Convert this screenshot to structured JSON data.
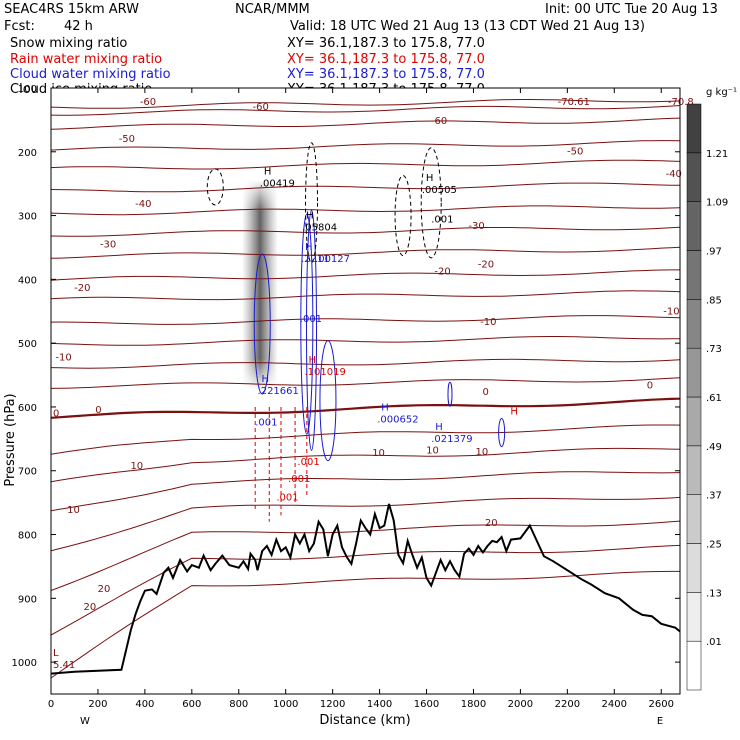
{
  "header": {
    "model": "SEAC4RS 15km ARW",
    "org": "NCAR/MMM",
    "init": "Init: 00 UTC Tue 20 Aug 13",
    "fcst_label": "Fcst:",
    "fcst_value": "42 h",
    "valid": "Valid: 18 UTC Wed 21 Aug 13 (13 CDT Wed 21 Aug 13)",
    "fields": [
      {
        "name": "Snow mixing ratio",
        "color": "#000000",
        "xy": "XY=  36.1,187.3 to 175.8, 77.0"
      },
      {
        "name": "Rain water mixing ratio",
        "color": "#e00000",
        "xy": "XY=  36.1,187.3 to 175.8, 77.0"
      },
      {
        "name": "Cloud water mixing ratio",
        "color": "#1a1ad0",
        "xy": "XY=  36.1,187.3 to 175.8, 77.0"
      },
      {
        "name": "Cloud ice mixing ratio",
        "color": "#000000",
        "xy": "XY=  36.1,187.3 to 175.8, 77.0"
      }
    ]
  },
  "chart_data": {
    "type": "cross-section",
    "xlabel": "Distance (km)",
    "ylabel": "Pressure (hPa)",
    "xlim": [
      0,
      2680
    ],
    "ylim": [
      1050,
      100
    ],
    "x_ticks": [
      0,
      200,
      400,
      600,
      800,
      1000,
      1200,
      1400,
      1600,
      1800,
      2000,
      2200,
      2400,
      2600
    ],
    "y_ticks": [
      100,
      200,
      300,
      400,
      500,
      600,
      700,
      800,
      900,
      1000
    ],
    "x_end_labels": [
      "W",
      "E"
    ],
    "colorbar": {
      "unit": "g kg⁻¹",
      "levels": [
        ".01",
        ".13",
        ".25",
        ".37",
        ".49",
        ".61",
        ".73",
        ".85",
        ".97",
        "1.09",
        "1.21"
      ]
    },
    "temperature_contours": [
      {
        "label": "-70.61",
        "x": 2150,
        "p": 120
      },
      {
        "label": "-70.8",
        "x": 2620,
        "p": 120
      },
      {
        "label": "-60",
        "x": 370,
        "p": 120
      },
      {
        "label": "-60",
        "x": 850,
        "p": 128
      },
      {
        "label": "-60",
        "x": 1610,
        "p": 150
      },
      {
        "label": "-50",
        "x": 280,
        "p": 178
      },
      {
        "label": "-50",
        "x": 2190,
        "p": 198
      },
      {
        "label": "-40",
        "x": 350,
        "p": 280
      },
      {
        "label": "-40",
        "x": 2610,
        "p": 233
      },
      {
        "label": "-30",
        "x": 200,
        "p": 344
      },
      {
        "label": "-30",
        "x": 1770,
        "p": 315
      },
      {
        "label": "-20",
        "x": 90,
        "p": 412
      },
      {
        "label": "-20",
        "x": 1625,
        "p": 386
      },
      {
        "label": "-20",
        "x": 1810,
        "p": 375
      },
      {
        "label": "-10",
        "x": 10,
        "p": 521
      },
      {
        "label": "-10",
        "x": 1820,
        "p": 465
      },
      {
        "label": "-10",
        "x": 2600,
        "p": 449
      },
      {
        "label": "0",
        "x": 0,
        "p": 609
      },
      {
        "label": "0",
        "x": 180,
        "p": 603
      },
      {
        "label": "0",
        "x": 1830,
        "p": 575
      },
      {
        "label": "0",
        "x": 2530,
        "p": 565
      },
      {
        "label": "10",
        "x": 1360,
        "p": 671
      },
      {
        "label": "10",
        "x": 1590,
        "p": 667
      },
      {
        "label": "10",
        "x": 1800,
        "p": 669
      },
      {
        "label": "10",
        "x": 330,
        "p": 691
      },
      {
        "label": "10",
        "x": 60,
        "p": 760
      },
      {
        "label": "20",
        "x": 1840,
        "p": 780
      },
      {
        "label": "20",
        "x": 190,
        "p": 884
      },
      {
        "label": "20",
        "x": 130,
        "p": 912
      }
    ],
    "maxima": [
      {
        "field": "Cloud ice",
        "label": "H",
        "value": ".00419",
        "x": 890,
        "p": 250
      },
      {
        "field": "Cloud ice",
        "label": "H",
        "value": ".00505",
        "x": 1580,
        "p": 260
      },
      {
        "field": "Cloud ice",
        "label": "H",
        "value": ".05804",
        "x": 1070,
        "p": 319
      },
      {
        "field": "Cloud ice",
        "label": "",
        "value": ".001",
        "x": 1620,
        "p": 306
      },
      {
        "field": "Cloud water",
        "label": "H",
        "value": ".2211",
        "x": 1065,
        "p": 368
      },
      {
        "field": "Cloud water",
        "label": "",
        "value": ".00127",
        "x": 1125,
        "p": 368
      },
      {
        "field": "Cloud water",
        "label": "",
        "value": ".001",
        "x": 1060,
        "p": 462
      },
      {
        "field": "Rain water",
        "label": "H",
        "value": ".101019",
        "x": 1080,
        "p": 545
      },
      {
        "field": "Cloud water",
        "label": "H",
        "value": ".221661",
        "x": 880,
        "p": 575
      },
      {
        "field": "Cloud water",
        "label": "H",
        "value": ".000652",
        "x": 1390,
        "p": 620
      },
      {
        "field": "Cloud water",
        "label": "H",
        "value": ".021379",
        "x": 1620,
        "p": 650
      },
      {
        "field": "Cloud water",
        "label": "",
        "value": ".001",
        "x": 870,
        "p": 624
      },
      {
        "field": "Rain water",
        "label": "",
        "value": ".001",
        "x": 1010,
        "p": 713
      },
      {
        "field": "Rain water",
        "label": "",
        "value": ".001",
        "x": 960,
        "p": 742
      },
      {
        "field": "Rain water",
        "label": "",
        "value": ".001",
        "x": 1050,
        "p": 686
      },
      {
        "field": "Rain water",
        "label": "H",
        "value": "",
        "x": 1940,
        "p": 626
      }
    ],
    "terrain_min_label": {
      "label": "L",
      "value": "5.41",
      "x": 0,
      "p": 1000
    },
    "terrain": [
      [
        0,
        1018
      ],
      [
        100,
        1015
      ],
      [
        300,
        1012
      ],
      [
        340,
        950
      ],
      [
        360,
        925
      ],
      [
        380,
        905
      ],
      [
        400,
        888
      ],
      [
        430,
        886
      ],
      [
        450,
        893
      ],
      [
        480,
        860
      ],
      [
        500,
        852
      ],
      [
        520,
        868
      ],
      [
        550,
        840
      ],
      [
        580,
        858
      ],
      [
        600,
        848
      ],
      [
        630,
        852
      ],
      [
        650,
        833
      ],
      [
        680,
        856
      ],
      [
        700,
        846
      ],
      [
        730,
        833
      ],
      [
        760,
        848
      ],
      [
        800,
        852
      ],
      [
        820,
        842
      ],
      [
        840,
        854
      ],
      [
        850,
        830
      ],
      [
        870,
        840
      ],
      [
        880,
        856
      ],
      [
        900,
        826
      ],
      [
        920,
        818
      ],
      [
        940,
        832
      ],
      [
        960,
        808
      ],
      [
        980,
        826
      ],
      [
        1000,
        820
      ],
      [
        1020,
        836
      ],
      [
        1040,
        800
      ],
      [
        1060,
        814
      ],
      [
        1080,
        800
      ],
      [
        1100,
        826
      ],
      [
        1120,
        814
      ],
      [
        1140,
        780
      ],
      [
        1160,
        792
      ],
      [
        1180,
        834
      ],
      [
        1200,
        800
      ],
      [
        1220,
        786
      ],
      [
        1240,
        820
      ],
      [
        1260,
        835
      ],
      [
        1280,
        846
      ],
      [
        1300,
        814
      ],
      [
        1320,
        778
      ],
      [
        1340,
        790
      ],
      [
        1360,
        800
      ],
      [
        1380,
        768
      ],
      [
        1400,
        790
      ],
      [
        1420,
        786
      ],
      [
        1440,
        752
      ],
      [
        1460,
        778
      ],
      [
        1480,
        832
      ],
      [
        1500,
        845
      ],
      [
        1520,
        810
      ],
      [
        1540,
        832
      ],
      [
        1560,
        852
      ],
      [
        1580,
        836
      ],
      [
        1600,
        868
      ],
      [
        1620,
        880
      ],
      [
        1640,
        860
      ],
      [
        1660,
        840
      ],
      [
        1680,
        856
      ],
      [
        1700,
        842
      ],
      [
        1720,
        856
      ],
      [
        1740,
        866
      ],
      [
        1760,
        830
      ],
      [
        1780,
        822
      ],
      [
        1800,
        832
      ],
      [
        1820,
        818
      ],
      [
        1840,
        828
      ],
      [
        1860,
        818
      ],
      [
        1880,
        810
      ],
      [
        1900,
        812
      ],
      [
        1920,
        804
      ],
      [
        1940,
        826
      ],
      [
        1960,
        808
      ],
      [
        2000,
        806
      ],
      [
        2040,
        786
      ],
      [
        2080,
        818
      ],
      [
        2100,
        834
      ],
      [
        2140,
        842
      ],
      [
        2200,
        856
      ],
      [
        2260,
        870
      ],
      [
        2300,
        878
      ],
      [
        2360,
        892
      ],
      [
        2420,
        900
      ],
      [
        2480,
        918
      ],
      [
        2520,
        926
      ],
      [
        2560,
        928
      ],
      [
        2600,
        940
      ],
      [
        2660,
        946
      ],
      [
        2680,
        952
      ]
    ]
  }
}
